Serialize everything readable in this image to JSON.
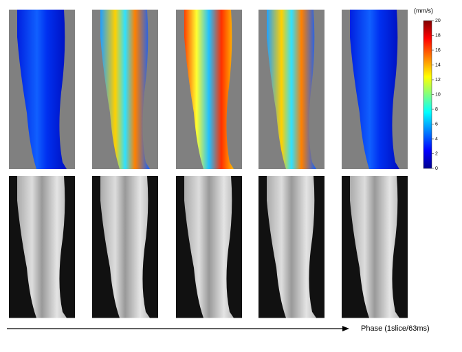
{
  "colorbar": {
    "unit": "(mm/s)",
    "lim": [
      0,
      20
    ],
    "ticks": [
      0,
      2,
      4,
      6,
      8,
      10,
      12,
      14,
      16,
      18,
      20
    ]
  },
  "axis_label": "Phase (1slice/63ms)"
}
